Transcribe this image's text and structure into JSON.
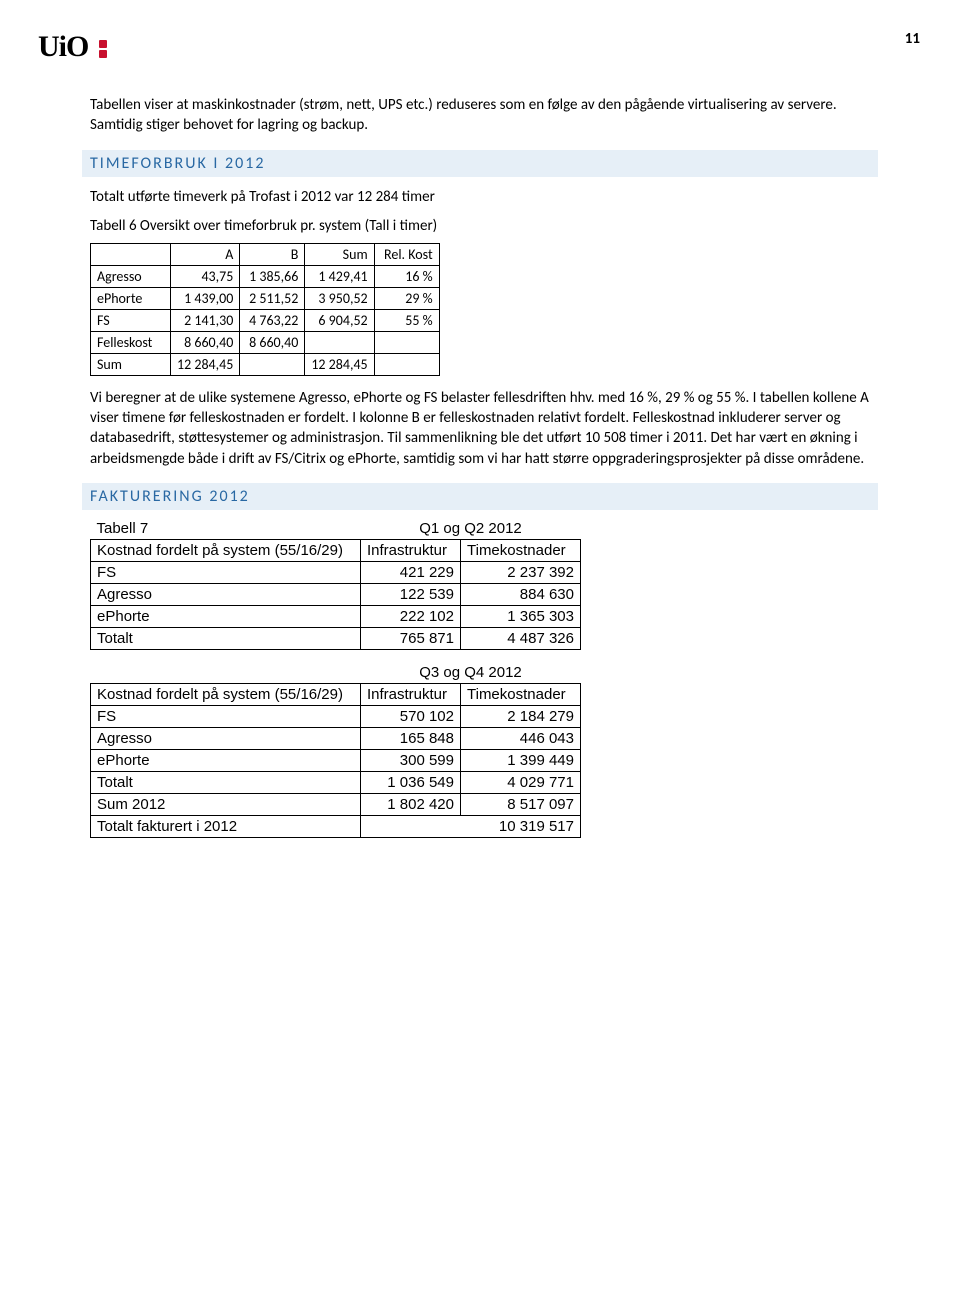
{
  "logo_text": "UiO",
  "page_number": "11",
  "para1": "Tabellen viser at maskinkostnader (strøm, nett, UPS etc.) reduseres som en følge av den pågående virtualisering av servere. Samtidig stiger behovet for lagring og backup.",
  "section1_title": "TIMEFORBRUK I 2012",
  "para2": "Totalt utførte timeverk på Trofast i 2012 var 12 284 timer",
  "caption1": "Tabell 6 Oversikt over timeforbruk pr. system (Tall i timer)",
  "table1": {
    "headers": [
      "",
      "A",
      "B",
      "Sum",
      "Rel. Kost"
    ],
    "rows": [
      [
        "Agresso",
        "43,75",
        "1 385,66",
        "1 429,41",
        "16 %"
      ],
      [
        "ePhorte",
        "1 439,00",
        "2 511,52",
        "3 950,52",
        "29 %"
      ],
      [
        "FS",
        "2 141,30",
        "4 763,22",
        "6 904,52",
        "55 %"
      ],
      [
        "Felleskost",
        "8 660,40",
        "8 660,40",
        "",
        ""
      ],
      [
        "Sum",
        "12 284,45",
        "",
        "12 284,45",
        ""
      ]
    ]
  },
  "para3": "Vi beregner at de ulike systemene Agresso, ePhorte og FS belaster fellesdriften hhv. med 16 %, 29 % og 55 %. I tabellen kollene A viser timene før felleskostnaden er fordelt. I kolonne B er felleskostnaden relativt fordelt. Felleskostnad inkluderer server og databasedrift, støttesystemer og administrasjon. Til sammenlikning ble det utført 10 508 timer i 2011. Det har vært en økning i arbeidsmengde både i drift av FS/Citrix og ePhorte, samtidig som vi har hatt større oppgraderingsprosjekter på disse områdene.",
  "section2_title": "FAKTURERING 2012",
  "tabell7_label": "Tabell 7",
  "table2a": {
    "title": "Q1 og Q2 2012",
    "header_row": [
      "Kostnad fordelt på system (55/16/29)",
      "Infrastruktur",
      "Timekostnader"
    ],
    "rows": [
      [
        "FS",
        "421 229",
        "2 237 392"
      ],
      [
        "Agresso",
        "122 539",
        "884 630"
      ],
      [
        "ePhorte",
        "222 102",
        "1 365 303"
      ],
      [
        "Totalt",
        "765 871",
        "4 487 326"
      ]
    ]
  },
  "table2b": {
    "title": "Q3 og Q4 2012",
    "header_row": [
      "Kostnad fordelt på system (55/16/29)",
      "Infrastruktur",
      "Timekostnader"
    ],
    "rows": [
      [
        "FS",
        "570 102",
        "2 184 279"
      ],
      [
        "Agresso",
        "165 848",
        "446 043"
      ],
      [
        "ePhorte",
        "300 599",
        "1 399 449"
      ],
      [
        "Totalt",
        "1 036 549",
        "4 029 771"
      ],
      [
        "Sum 2012",
        "1 802 420",
        "8 517 097"
      ]
    ],
    "footer": [
      "Totalt fakturert i 2012",
      "10 319 517"
    ]
  }
}
